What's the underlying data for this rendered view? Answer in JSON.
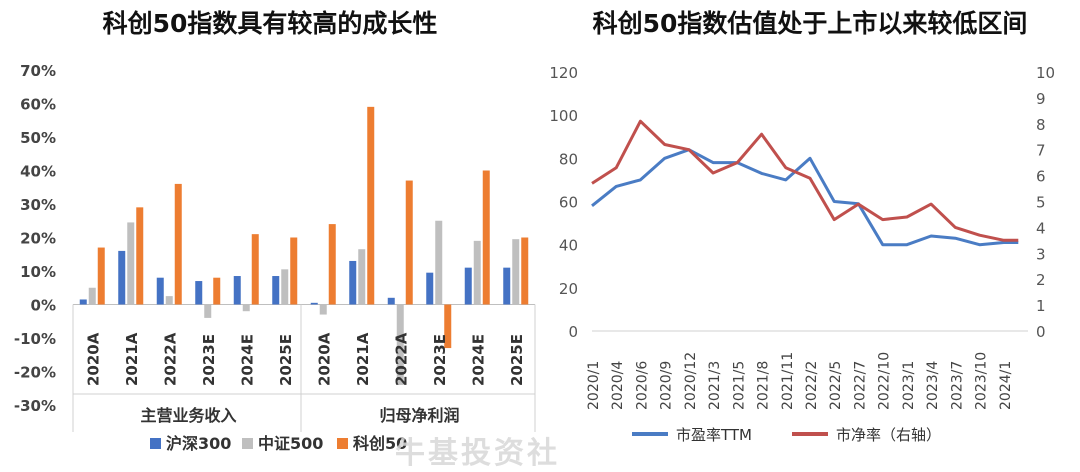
{
  "watermark": "牛基投资社",
  "chart_data": [
    {
      "type": "bar",
      "title": "科创50指数具有较高的成长性",
      "y_ticks": [
        "70%",
        "60%",
        "50%",
        "40%",
        "30%",
        "20%",
        "10%",
        "0%",
        "-10%",
        "-20%",
        "-30%"
      ],
      "ylim": [
        -30,
        70
      ],
      "groups": [
        {
          "label": "主营业务收入",
          "categories": [
            "2020A",
            "2021A",
            "2022A",
            "2023E",
            "2024E",
            "2025E"
          ]
        },
        {
          "label": "归母净利润",
          "categories": [
            "2020A",
            "2021A",
            "2022A",
            "2023E",
            "2024E",
            "2025E"
          ]
        }
      ],
      "series": [
        {
          "name": "沪深300",
          "color": "#4472c4",
          "values": [
            1.5,
            16,
            8,
            7,
            8.5,
            8.5,
            0.5,
            13,
            2,
            9.5,
            11,
            11
          ]
        },
        {
          "name": "中证500",
          "color": "#bfbfbf",
          "values": [
            5,
            24.5,
            2.5,
            -4,
            -2,
            10.5,
            -3,
            16.5,
            -24,
            25,
            19,
            19.5
          ]
        },
        {
          "name": "科创50",
          "color": "#ed7d31",
          "values": [
            17,
            29,
            36,
            8,
            21,
            20,
            24,
            59,
            37,
            -13,
            40,
            20
          ]
        }
      ]
    },
    {
      "type": "line",
      "title": "科创50指数估值处于上市以来较低区间",
      "x_ticks": [
        "2020/1",
        "2020/4",
        "2020/6",
        "2020/9",
        "2020/12",
        "2021/3",
        "2021/5",
        "2021/8",
        "2021/11",
        "2022/2",
        "2022/5",
        "2022/7",
        "2022/10",
        "2023/1",
        "2023/4",
        "2023/7",
        "2023/10",
        "2024/1"
      ],
      "y_left_ticks": [
        "120",
        "100",
        "80",
        "60",
        "40",
        "20",
        "0"
      ],
      "y_right_ticks": [
        "10",
        "9",
        "8",
        "7",
        "6",
        "5",
        "4",
        "3",
        "2",
        "1",
        "0"
      ],
      "ylim_left": [
        0,
        120
      ],
      "ylim_right": [
        0,
        10
      ],
      "series": [
        {
          "name": "市盈率TTM",
          "axis": "left",
          "color": "#4a7cc4",
          "x": [
            0,
            1,
            2,
            3,
            4,
            5,
            6,
            7,
            8,
            9,
            10,
            11,
            12,
            13,
            14,
            15,
            16,
            17,
            17.6
          ],
          "values": [
            58,
            67,
            70,
            80,
            84,
            78,
            78,
            73,
            70,
            80,
            60,
            59,
            40,
            40,
            44,
            43,
            40,
            41,
            41
          ]
        },
        {
          "name": "市净率（右轴）",
          "axis": "right",
          "color": "#c0504d",
          "x": [
            0,
            1,
            2,
            3,
            4,
            5,
            6,
            7,
            8,
            9,
            10,
            11,
            12,
            13,
            14,
            15,
            16,
            17,
            17.6
          ],
          "values": [
            5.7,
            6.3,
            8.1,
            7.2,
            7.0,
            6.1,
            6.5,
            7.6,
            6.3,
            5.9,
            4.3,
            4.9,
            4.3,
            4.4,
            4.9,
            4.0,
            3.7,
            3.5,
            3.5
          ]
        }
      ]
    }
  ]
}
